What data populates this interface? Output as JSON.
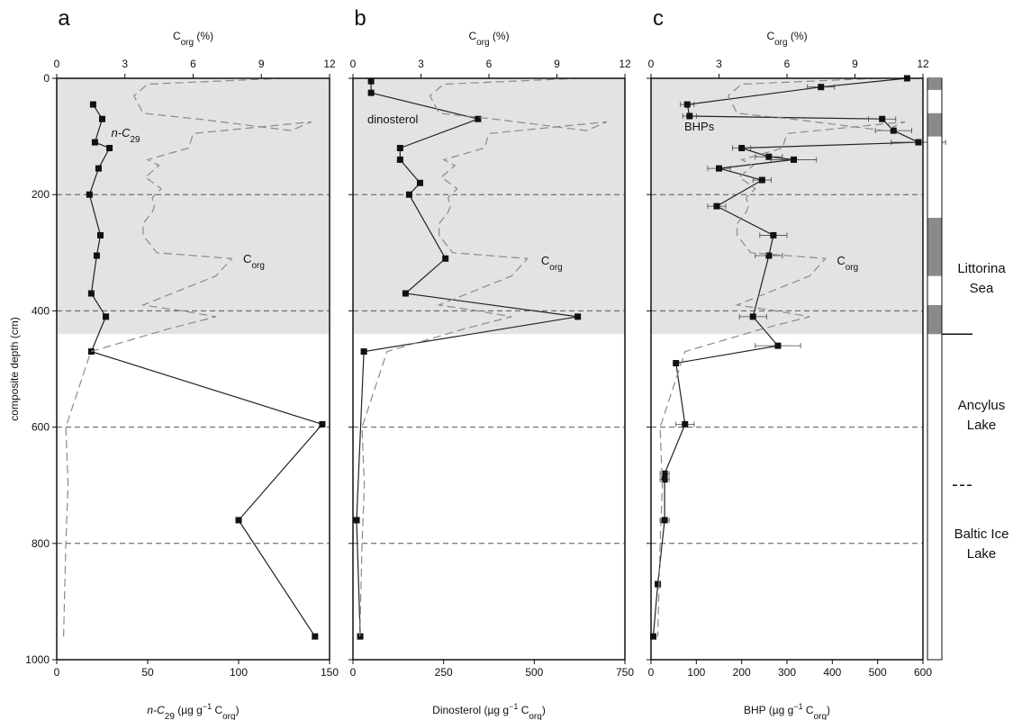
{
  "chart_data": [
    {
      "type": "line",
      "panel": "a",
      "ylabel": "composite depth (cm)",
      "ylim": [
        1000,
        0
      ],
      "yticks": [
        "0",
        "200",
        "400",
        "600",
        "800",
        "1000"
      ],
      "xlabel": "n-C29 (µg g−1 Corg)",
      "xlim": [
        0,
        150
      ],
      "xticks": [
        "0",
        "50",
        "100",
        "150"
      ],
      "top_xlabel": "Corg (%)",
      "top_xlim": [
        0,
        12
      ],
      "top_xticks": [
        "0",
        "3",
        "6",
        "9",
        "12"
      ],
      "shaded_depth_range": [
        0,
        440
      ],
      "dashed_lines": [
        200,
        400,
        600,
        800
      ],
      "annotations": [
        "n-C29",
        "Corg"
      ],
      "series": [
        {
          "name": "n-C29",
          "style": "solid-square-markers",
          "x": [
            20,
            25,
            21,
            29,
            23,
            18,
            24,
            22,
            19,
            27,
            19,
            146,
            100,
            142
          ],
          "y": [
            45,
            70,
            110,
            120,
            155,
            200,
            270,
            305,
            370,
            410,
            470,
            595,
            760,
            960
          ]
        },
        {
          "name": "Corg",
          "style": "dashed",
          "x": [
            10.0,
            4.0,
            3.4,
            3.8,
            6.2,
            10.3,
            11.2,
            6.0,
            5.8,
            4.0,
            4.5,
            3.9,
            4.6,
            4.2,
            4.3,
            4.2,
            3.8,
            3.8,
            4.4,
            7.7,
            7.0,
            3.8,
            5.5,
            7.0,
            5.0,
            1.5,
            0.4,
            0.5,
            0.4,
            0.3
          ],
          "y": [
            0,
            10,
            30,
            60,
            70,
            90,
            75,
            95,
            120,
            140,
            150,
            170,
            190,
            205,
            220,
            230,
            250,
            270,
            300,
            310,
            340,
            390,
            400,
            410,
            430,
            470,
            600,
            700,
            800,
            960
          ]
        }
      ]
    },
    {
      "type": "line",
      "panel": "b",
      "xlabel": "Dinosterol (µg g−1 Corg)",
      "xlim": [
        0,
        750
      ],
      "xticks": [
        "0",
        "250",
        "500",
        "750"
      ],
      "top_xlabel": "Corg (%)",
      "top_xlim": [
        0,
        12
      ],
      "top_xticks": [
        "0",
        "3",
        "6",
        "9",
        "12"
      ],
      "ylim": [
        1000,
        0
      ],
      "shaded_depth_range": [
        0,
        440
      ],
      "dashed_lines": [
        200,
        400,
        600,
        800
      ],
      "annotations": [
        "dinosterol",
        "Corg"
      ],
      "series": [
        {
          "name": "dinosterol",
          "style": "solid-square-markers",
          "x": [
            50,
            50,
            345,
            130,
            130,
            185,
            155,
            255,
            145,
            620,
            30,
            10,
            20
          ],
          "y": [
            5,
            25,
            70,
            120,
            140,
            180,
            200,
            310,
            370,
            410,
            470,
            760,
            960
          ]
        },
        {
          "name": "Corg",
          "style": "dashed",
          "x": [
            10.0,
            4.0,
            3.4,
            3.8,
            6.2,
            10.3,
            11.2,
            6.0,
            5.8,
            4.0,
            4.5,
            3.9,
            4.6,
            4.2,
            4.3,
            4.2,
            3.8,
            3.8,
            4.4,
            7.7,
            7.0,
            3.8,
            5.5,
            7.0,
            5.0,
            1.5,
            0.4,
            0.5,
            0.4,
            0.3
          ],
          "y": [
            0,
            10,
            30,
            60,
            70,
            90,
            75,
            95,
            120,
            140,
            150,
            170,
            190,
            205,
            220,
            230,
            250,
            270,
            300,
            310,
            340,
            390,
            400,
            410,
            430,
            470,
            600,
            700,
            800,
            960
          ]
        }
      ]
    },
    {
      "type": "line",
      "panel": "c",
      "xlabel": "BHP (µg g−1 Corg)",
      "xlim": [
        0,
        600
      ],
      "xticks": [
        "0",
        "100",
        "200",
        "300",
        "400",
        "500",
        "600"
      ],
      "top_xlabel": "Corg (%)",
      "top_xlim": [
        0,
        12
      ],
      "top_xticks": [
        "0",
        "3",
        "6",
        "9",
        "12"
      ],
      "ylim": [
        1000,
        0
      ],
      "shaded_depth_range": [
        0,
        440
      ],
      "dashed_lines": [
        200,
        400,
        600,
        800
      ],
      "annotations": [
        "BHPs",
        "Corg"
      ],
      "series": [
        {
          "name": "BHPs",
          "style": "solid-square-markers-with-error-bars",
          "x": [
            565,
            375,
            80,
            85,
            510,
            535,
            590,
            200,
            260,
            315,
            150,
            245,
            145,
            270,
            260,
            225,
            280,
            55,
            75,
            30,
            30,
            30,
            15,
            5
          ],
          "xerr": [
            0,
            30,
            15,
            15,
            30,
            40,
            60,
            20,
            30,
            50,
            25,
            20,
            20,
            30,
            30,
            30,
            50,
            5,
            20,
            10,
            10,
            10,
            5,
            3
          ],
          "y": [
            0,
            15,
            45,
            65,
            70,
            90,
            110,
            120,
            135,
            140,
            155,
            175,
            220,
            270,
            305,
            410,
            460,
            490,
            595,
            680,
            690,
            760,
            870,
            960
          ]
        },
        {
          "name": "Corg",
          "style": "dashed",
          "x": [
            10.0,
            4.0,
            3.4,
            3.8,
            6.2,
            10.3,
            11.2,
            6.0,
            5.8,
            4.0,
            4.5,
            3.9,
            4.6,
            4.2,
            4.3,
            4.2,
            3.8,
            3.8,
            4.4,
            7.7,
            7.0,
            3.8,
            5.5,
            7.0,
            5.0,
            1.5,
            0.4,
            0.5,
            0.4,
            0.3
          ],
          "y": [
            0,
            10,
            30,
            60,
            70,
            90,
            75,
            95,
            120,
            140,
            150,
            170,
            190,
            205,
            220,
            230,
            250,
            270,
            300,
            310,
            340,
            390,
            400,
            410,
            430,
            470,
            600,
            700,
            800,
            960
          ]
        }
      ]
    }
  ],
  "strip": {
    "dark_intervals": [
      [
        0,
        20
      ],
      [
        60,
        100
      ],
      [
        240,
        340
      ],
      [
        390,
        440
      ]
    ],
    "units": [
      {
        "label": "Littorina Sea",
        "top": 0,
        "bottom": 440
      },
      {
        "label": "Ancylus Lake",
        "top": 440,
        "bottom": 700
      },
      {
        "label": "Baltic Ice Lake",
        "top": 700,
        "bottom": 1000
      }
    ]
  },
  "colors": {
    "shade": "#e3e3e3",
    "strip_dark": "#8a8a8a",
    "line": "#222222",
    "corg": "#8a8a8a"
  },
  "labels": {
    "panel_a": "a",
    "panel_b": "b",
    "panel_c": "c",
    "ylabel": "composite depth (cm)",
    "top_corg": "Corg (%)",
    "bottom_a": "n-C29 (µg g−1 Corg)",
    "bottom_b": "Dinosterol (µg g−1 Corg)",
    "bottom_c": "BHP (µg g−1 Corg)"
  }
}
